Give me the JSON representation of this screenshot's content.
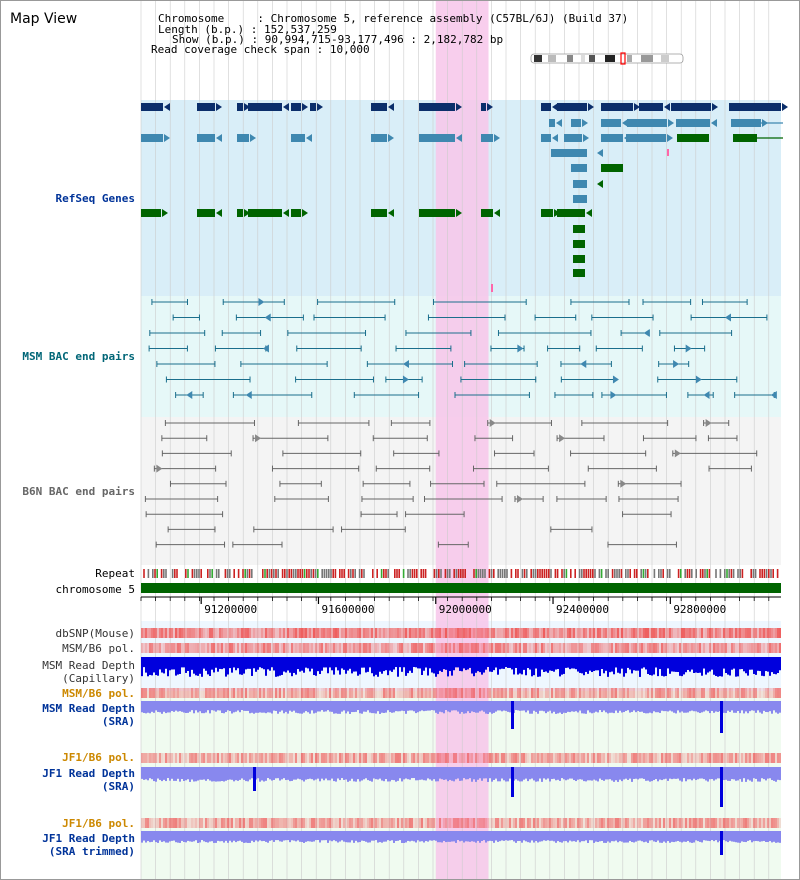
{
  "app": {
    "title": "Map View"
  },
  "header": {
    "chromosome_key": "Chromosome",
    "chromosome_value": "Chromosome 5, reference assembly (C57BL/6J) (Build 37)",
    "length_key": "Length (b.p.)",
    "length_value": "152,537,259",
    "show_key": "Show (b.p.)",
    "show_value": "90,994,715-93,177,496 : 2,182,782 bp",
    "coverage_key": "Read coverage check span",
    "coverage_value": "10,000"
  },
  "tracks": {
    "refseq": "RefSeq Genes",
    "msm_bac": "MSM BAC end pairs",
    "b6n_bac": "B6N BAC end pairs",
    "repeat": "Repeat",
    "chromosome": "chromosome 5",
    "dbsnp": "dbSNP(Mouse)",
    "msm_b6_pol_1": "MSM/B6 pol.",
    "msm_read_depth_cap_1": "MSM Read Depth",
    "msm_read_depth_cap_2": "(Capillary)",
    "msm_b6_pol_2": "MSM/B6 pol.",
    "msm_read_depth_sra_1": "MSM Read Depth",
    "msm_read_depth_sra_2": "(SRA)",
    "jf1_b6_pol_1": "JF1/B6 pol.",
    "jf1_read_depth_sra_1": "JF1 Read Depth",
    "jf1_read_depth_sra_2": "(SRA)",
    "jf1_b6_pol_2": "JF1/B6 pol.",
    "jf1_read_depth_trim_1": "JF1 Read Depth",
    "jf1_read_depth_trim_2": "(SRA trimmed)"
  },
  "axis": {
    "ticks": [
      "91200000",
      "91600000",
      "92000000",
      "92400000",
      "92800000"
    ],
    "tick_values": [
      91200000,
      91600000,
      92000000,
      92400000,
      92800000
    ],
    "range": [
      90994715,
      93177496
    ]
  },
  "highlight": {
    "range": [
      92000000,
      92180000
    ]
  },
  "colors": {
    "refseq_bg": "#d9eef8",
    "msm_bg": "#e6f8f8",
    "b6n_bg": "#f4f4f4",
    "gene_dark": "#0b2e6b",
    "gene_mid": "#3f88b0",
    "gene_green": "#006400",
    "msm_pair": "#1a6e8c",
    "b6n_pair": "#666666",
    "highlight": "#f7c6ea",
    "label_blue": "#003399",
    "label_orange": "#cc8800",
    "label_teal": "#006677",
    "label_dark": "#333333",
    "depth_dark": "#0000dd",
    "depth_light": "#8888ee",
    "pol_red": "#ee5555"
  }
}
